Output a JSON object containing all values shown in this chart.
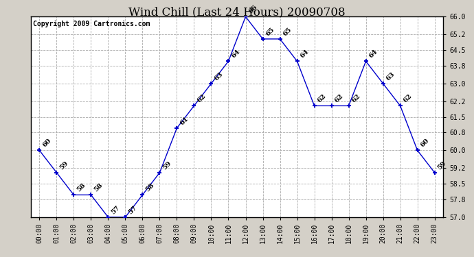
{
  "title": "Wind Chill (Last 24 Hours) 20090708",
  "copyright": "Copyright 2009 Cartronics.com",
  "hours": [
    "00:00",
    "01:00",
    "02:00",
    "03:00",
    "04:00",
    "05:00",
    "06:00",
    "07:00",
    "08:00",
    "09:00",
    "10:00",
    "11:00",
    "12:00",
    "13:00",
    "14:00",
    "15:00",
    "16:00",
    "17:00",
    "18:00",
    "19:00",
    "20:00",
    "21:00",
    "22:00",
    "23:00"
  ],
  "values": [
    60,
    59,
    58,
    58,
    57,
    57,
    58,
    59,
    61,
    62,
    63,
    64,
    66,
    65,
    65,
    64,
    62,
    62,
    62,
    64,
    63,
    62,
    60,
    59
  ],
  "ylim_min": 57.0,
  "ylim_max": 66.0,
  "yticks": [
    57.0,
    57.8,
    58.5,
    59.2,
    60.0,
    60.8,
    61.5,
    62.2,
    63.0,
    63.8,
    64.5,
    65.2,
    66.0
  ],
  "line_color": "#0000cc",
  "marker_color": "#0000cc",
  "bg_color": "#d4d0c8",
  "plot_bg_color": "#ffffff",
  "grid_color": "#aaaaaa",
  "title_fontsize": 12,
  "label_fontsize": 7,
  "annotation_fontsize": 7,
  "copyright_fontsize": 7
}
